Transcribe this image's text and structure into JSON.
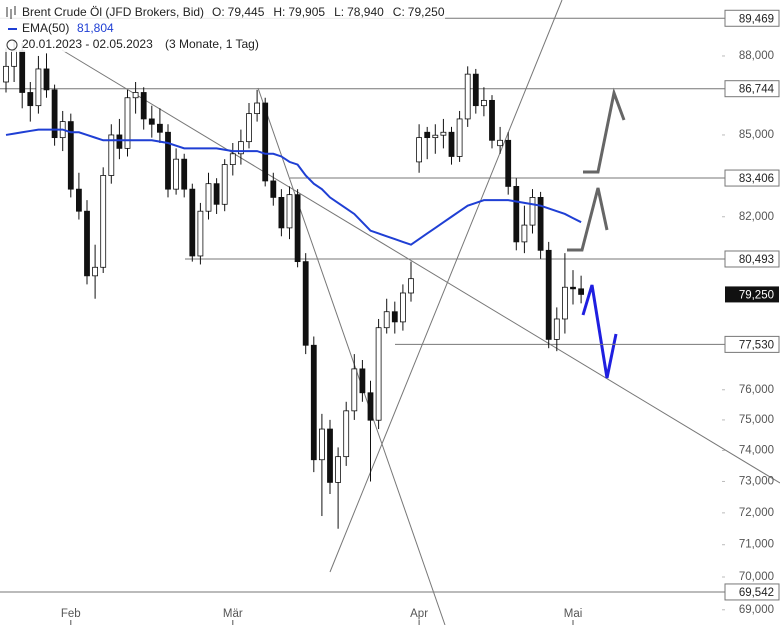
{
  "chart_data": {
    "type": "candlestick",
    "title": "Brent Crude Öl (JFD Brokers, Bid)",
    "ohlc": [
      {
        "key": "O:",
        "value": 79.445,
        "label": "79,445"
      },
      {
        "key": "H:",
        "value": 79.905,
        "label": "79,905"
      },
      {
        "key": "L:",
        "value": 78.94,
        "label": "78,940"
      },
      {
        "key": "C:",
        "value": 79.25,
        "label": "79,250"
      }
    ],
    "date_range": "20.01.2023 - 02.05.2023",
    "period": "(3 Monate, 1 Tag)",
    "categories": [
      null,
      null,
      null,
      null,
      null,
      null,
      null,
      null,
      "Feb",
      null,
      null,
      null,
      null,
      null,
      null,
      null,
      null,
      null,
      null,
      null,
      null,
      null,
      null,
      null,
      null,
      null,
      null,
      null,
      "Mär",
      null,
      null,
      null,
      null,
      null,
      null,
      null,
      null,
      null,
      null,
      null,
      null,
      null,
      null,
      null,
      null,
      null,
      null,
      null,
      null,
      null,
      null,
      "Apr",
      null,
      null,
      null,
      null,
      null,
      null,
      null,
      null,
      null,
      null,
      null,
      null,
      null,
      null,
      null,
      null,
      null,
      null,
      "Mai",
      null
    ],
    "open": [
      87.0,
      87.6,
      88.2,
      86.6,
      86.1,
      87.5,
      86.7,
      84.9,
      85.5,
      83.0,
      82.2,
      79.9,
      80.2,
      83.5,
      85.0,
      84.5,
      86.4,
      86.6,
      85.6,
      85.4,
      85.1,
      83.0,
      84.1,
      83.0,
      80.6,
      82.2,
      83.2,
      82.45,
      83.9,
      84.3,
      84.75,
      85.8,
      86.2,
      83.3,
      82.7,
      81.6,
      82.8,
      80.4,
      77.5,
      73.7,
      74.7,
      72.97,
      73.8,
      75.3,
      76.7,
      75.9,
      74.99,
      78.1,
      78.65,
      78.3,
      79.3,
      84.0,
      85.1,
      84.9,
      84.99,
      85.1,
      84.2,
      85.6,
      87.3,
      86.1,
      86.3,
      84.6,
      84.8,
      83.1,
      81.1,
      81.7,
      82.7,
      80.8,
      77.7,
      78.4,
      79.5,
      79.445
    ],
    "high": [
      88.3,
      88.6,
      88.5,
      87.0,
      88.0,
      88.1,
      86.9,
      85.9,
      85.8,
      83.6,
      82.6,
      81.0,
      83.8,
      85.4,
      85.6,
      86.7,
      87.0,
      86.8,
      86.1,
      86.0,
      85.4,
      84.5,
      84.3,
      83.2,
      82.5,
      83.6,
      83.4,
      84.1,
      84.7,
      85.2,
      86.2,
      86.7,
      86.4,
      83.6,
      83.0,
      83.1,
      83.0,
      80.7,
      77.8,
      75.2,
      75.0,
      74.1,
      75.6,
      77.2,
      77.0,
      76.3,
      78.4,
      79.1,
      79.0,
      79.6,
      80.4,
      85.4,
      85.3,
      85.4,
      85.6,
      85.3,
      85.9,
      87.6,
      87.5,
      86.8,
      86.5,
      85.3,
      85.1,
      83.4,
      82.4,
      83.0,
      82.9,
      81.1,
      78.8,
      80.7,
      80.1,
      79.905
    ],
    "low": [
      86.6,
      87.0,
      86.0,
      85.5,
      85.8,
      86.4,
      84.6,
      84.4,
      82.7,
      81.9,
      79.6,
      79.1,
      80.0,
      83.2,
      84.1,
      84.2,
      85.8,
      85.2,
      84.9,
      84.7,
      82.7,
      82.8,
      82.7,
      80.4,
      80.3,
      81.9,
      82.1,
      82.2,
      83.5,
      83.9,
      84.5,
      85.5,
      83.1,
      82.4,
      81.3,
      81.2,
      80.2,
      77.2,
      73.3,
      71.9,
      72.6,
      71.5,
      73.5,
      75.0,
      75.6,
      73.0,
      74.7,
      77.9,
      77.9,
      78.0,
      79.0,
      83.6,
      84.1,
      84.3,
      84.5,
      83.9,
      84.0,
      85.3,
      85.8,
      85.7,
      84.5,
      84.3,
      82.8,
      80.8,
      80.7,
      81.4,
      80.5,
      77.4,
      77.3,
      77.9,
      78.9,
      78.94
    ],
    "close": [
      87.6,
      88.2,
      86.6,
      86.1,
      87.5,
      86.7,
      84.9,
      85.5,
      83.0,
      82.2,
      79.9,
      80.2,
      83.5,
      85.0,
      84.5,
      86.4,
      86.6,
      85.6,
      85.4,
      85.1,
      83.0,
      84.1,
      83.0,
      80.6,
      82.2,
      83.2,
      82.45,
      83.9,
      84.3,
      84.75,
      85.8,
      86.2,
      83.3,
      82.7,
      81.6,
      82.8,
      80.4,
      77.5,
      73.7,
      74.7,
      72.97,
      73.8,
      75.3,
      76.7,
      75.9,
      74.99,
      78.1,
      78.65,
      78.3,
      79.3,
      79.8,
      84.9,
      84.9,
      84.99,
      85.1,
      84.2,
      85.6,
      87.3,
      86.1,
      86.3,
      84.8,
      84.8,
      83.1,
      81.1,
      81.7,
      82.7,
      80.8,
      77.7,
      78.4,
      79.5,
      79.445,
      79.25
    ],
    "color_up": "#ffffff",
    "color_down": "#111111",
    "ema": {
      "name": "EMA(50)",
      "color": "#1f3fd4",
      "last": {
        "value": 81.804,
        "label": "81,804"
      },
      "values": [
        85.0,
        85.05,
        85.1,
        85.15,
        85.2,
        85.2,
        85.2,
        85.2,
        85.1,
        85.1,
        85.0,
        84.9,
        84.8,
        84.8,
        84.8,
        84.8,
        84.8,
        84.8,
        84.8,
        84.75,
        84.7,
        84.6,
        84.5,
        84.5,
        84.5,
        84.5,
        84.5,
        84.45,
        84.4,
        84.4,
        84.4,
        84.4,
        84.3,
        84.3,
        84.2,
        84.0,
        83.9,
        83.5,
        83.2,
        83.0,
        82.7,
        82.5,
        82.3,
        82.1,
        81.8,
        81.5,
        81.4,
        81.3,
        81.2,
        81.1,
        81.0,
        81.2,
        81.4,
        81.6,
        81.8,
        82.0,
        82.2,
        82.4,
        82.5,
        82.6,
        82.6,
        82.6,
        82.6,
        82.55,
        82.5,
        82.45,
        82.4,
        82.3,
        82.2,
        82.1,
        81.95,
        81.804
      ]
    },
    "levels": [
      {
        "value": 89.469,
        "label": "89,469"
      },
      {
        "value": 86.744,
        "label": "86,744"
      },
      {
        "value": 83.406,
        "label": "83,406"
      },
      {
        "value": 80.493,
        "label": "80,493"
      },
      {
        "value": 77.53,
        "label": "77,530"
      },
      {
        "value": 69.542,
        "label": "69,542"
      }
    ],
    "last": {
      "value": 79.25,
      "label": "79,250"
    },
    "log_scale": true,
    "ylim": [
      68.54,
      90.19
    ],
    "yticks": [
      {
        "value": 69,
        "label": "69,000"
      },
      {
        "value": 70,
        "label": "70,000"
      },
      {
        "value": 71,
        "label": "71,000"
      },
      {
        "value": 72,
        "label": "72,000"
      },
      {
        "value": 73,
        "label": "73,000"
      },
      {
        "value": 74,
        "label": "74,000"
      },
      {
        "value": 75,
        "label": "75,000"
      },
      {
        "value": 76,
        "label": "76,000"
      },
      {
        "value": 82,
        "label": "82,000"
      },
      {
        "value": 85,
        "label": "85,000"
      },
      {
        "value": 88,
        "label": "88,000"
      }
    ]
  }
}
